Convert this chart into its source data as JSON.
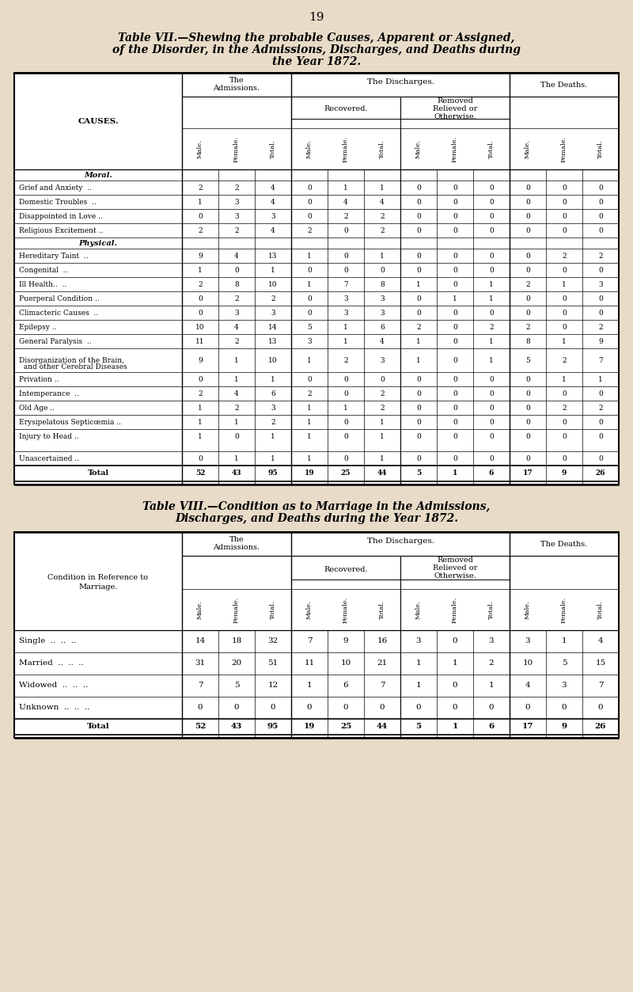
{
  "bg_color": "#e8dcc8",
  "page_number": "19",
  "table7": {
    "title_line1": "Table VII.—Shewing the probable Causes, Apparent or Assigned,",
    "title_line2": "of the Disorder, in the Admissions, Discharges, and Deaths during",
    "title_line3": "the Year 1872.",
    "causes_header": "CAUSES.",
    "section_moral": "Moral.",
    "section_physical": "Physical.",
    "rows": [
      {
        "cause": "Grief and Anxiety",
        "dots": "  ..",
        "data": [
          2,
          2,
          4,
          0,
          1,
          1,
          0,
          0,
          0,
          0,
          0,
          0
        ],
        "type": "moral"
      },
      {
        "cause": "Domestic Troubles",
        "dots": "  ..",
        "data": [
          1,
          3,
          4,
          0,
          4,
          4,
          0,
          0,
          0,
          0,
          0,
          0
        ],
        "type": "moral"
      },
      {
        "cause": "Disappointed in Love",
        "dots": " ..",
        "data": [
          0,
          3,
          3,
          0,
          2,
          2,
          0,
          0,
          0,
          0,
          0,
          0
        ],
        "type": "moral"
      },
      {
        "cause": "Religious Excitement",
        "dots": " ..",
        "data": [
          2,
          2,
          4,
          2,
          0,
          2,
          0,
          0,
          0,
          0,
          0,
          0
        ],
        "type": "moral"
      },
      {
        "cause": "Hereditary Taint",
        "dots": "  ..",
        "data": [
          9,
          4,
          13,
          1,
          0,
          1,
          0,
          0,
          0,
          0,
          2,
          2
        ],
        "type": "physical"
      },
      {
        "cause": "Congenital",
        "dots": "  ..",
        "data": [
          1,
          0,
          1,
          0,
          0,
          0,
          0,
          0,
          0,
          0,
          0,
          0
        ],
        "type": "physical"
      },
      {
        "cause": "Ill Health..",
        "dots": "  ..",
        "data": [
          2,
          8,
          10,
          1,
          7,
          8,
          1,
          0,
          1,
          2,
          1,
          3
        ],
        "type": "physical"
      },
      {
        "cause": "Puerperal Condition",
        "dots": " ..",
        "data": [
          0,
          2,
          2,
          0,
          3,
          3,
          0,
          1,
          1,
          0,
          0,
          0
        ],
        "type": "physical"
      },
      {
        "cause": "Climacteric Causes",
        "dots": "  ..",
        "data": [
          0,
          3,
          3,
          0,
          3,
          3,
          0,
          0,
          0,
          0,
          0,
          0
        ],
        "type": "physical"
      },
      {
        "cause": "Epilepsy",
        "dots": " ..",
        "data": [
          10,
          4,
          14,
          5,
          1,
          6,
          2,
          0,
          2,
          2,
          0,
          2
        ],
        "type": "physical"
      },
      {
        "cause": "General Paralysis",
        "dots": "  ..",
        "data": [
          11,
          2,
          13,
          3,
          1,
          4,
          1,
          0,
          1,
          8,
          1,
          9
        ],
        "type": "physical"
      },
      {
        "cause": "Disorganization of the Brain,",
        "cause2": "  and other Cerebral Diseases",
        "dots": "",
        "data": [
          9,
          1,
          10,
          1,
          2,
          3,
          1,
          0,
          1,
          5,
          2,
          7
        ],
        "type": "physical",
        "tall": true
      },
      {
        "cause": "Privation",
        "dots": " ..",
        "data": [
          0,
          1,
          1,
          0,
          0,
          0,
          0,
          0,
          0,
          0,
          1,
          1
        ],
        "type": "physical"
      },
      {
        "cause": "Intemperance",
        "dots": "  ..",
        "data": [
          2,
          4,
          6,
          2,
          0,
          2,
          0,
          0,
          0,
          0,
          0,
          0
        ],
        "type": "physical"
      },
      {
        "cause": "Old Age",
        "dots": " ..",
        "data": [
          1,
          2,
          3,
          1,
          1,
          2,
          0,
          0,
          0,
          0,
          2,
          2
        ],
        "type": "physical"
      },
      {
        "cause": "Erysipelatous Septicœmia",
        "dots": " ..",
        "data": [
          1,
          1,
          2,
          1,
          0,
          1,
          0,
          0,
          0,
          0,
          0,
          0
        ],
        "type": "physical"
      },
      {
        "cause": "Injury to Head",
        "dots": " ..",
        "data": [
          1,
          0,
          1,
          1,
          0,
          1,
          0,
          0,
          0,
          0,
          0,
          0
        ],
        "type": "physical"
      },
      {
        "cause": "Unascertained",
        "dots": " ..",
        "data": [
          0,
          1,
          1,
          1,
          0,
          1,
          0,
          0,
          0,
          0,
          0,
          0
        ],
        "type": "unascertained"
      },
      {
        "cause": "Total",
        "dots": "",
        "data": [
          52,
          43,
          95,
          19,
          25,
          44,
          5,
          1,
          6,
          17,
          9,
          26
        ],
        "type": "total"
      }
    ]
  },
  "table8": {
    "title_line1": "Table VIII.—Condition as to Marriage in the Admissions,",
    "title_line2": "Discharges, and Deaths during the Year 1872.",
    "causes_header": "Condition in Reference to\nMarriage.",
    "rows": [
      {
        "cause": "Single",
        "dots": "  ..  ..  ..",
        "data": [
          14,
          18,
          32,
          7,
          9,
          16,
          3,
          0,
          3,
          3,
          1,
          4
        ]
      },
      {
        "cause": "Married",
        "dots": " ..  ..  ..",
        "data": [
          31,
          20,
          51,
          11,
          10,
          21,
          1,
          1,
          2,
          10,
          5,
          15
        ]
      },
      {
        "cause": "Widowed",
        "dots": "  ..  ..  ..",
        "data": [
          7,
          5,
          12,
          1,
          6,
          7,
          1,
          0,
          1,
          4,
          3,
          7
        ]
      },
      {
        "cause": "Unknown",
        "dots": "  ..  ..  ..",
        "data": [
          0,
          0,
          0,
          0,
          0,
          0,
          0,
          0,
          0,
          0,
          0,
          0
        ]
      },
      {
        "cause": "Total",
        "dots": "  ..  ..  ..",
        "data": [
          52,
          43,
          95,
          19,
          25,
          44,
          5,
          1,
          6,
          17,
          9,
          26
        ],
        "type": "total"
      }
    ]
  }
}
